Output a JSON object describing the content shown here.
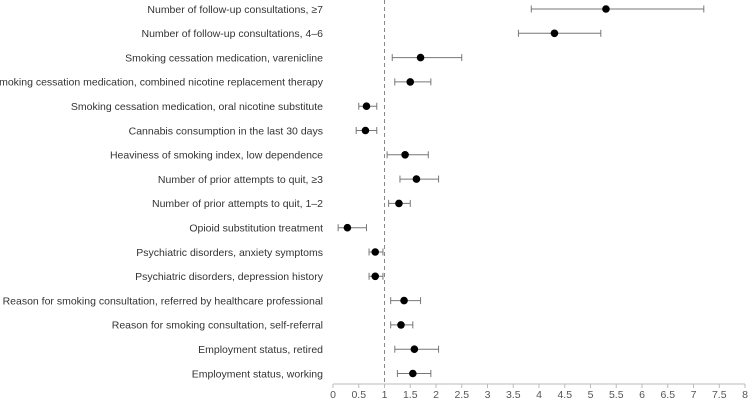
{
  "chart_data": {
    "type": "scatter",
    "subtype": "forest-plot",
    "reference_line": 1,
    "xlim": [
      0,
      8
    ],
    "x_ticks": [
      "0",
      "0.5",
      "1",
      "1.5",
      "2",
      "2.5",
      "3",
      "3.5",
      "4",
      "4.5",
      "5",
      "5.5",
      "6",
      "6.5",
      "7",
      "7.5",
      "8"
    ],
    "grid": false,
    "rows": [
      {
        "label": "Number of follow-up consultations, ≥7",
        "estimate": 5.3,
        "lower": 3.85,
        "upper": 7.2
      },
      {
        "label": "Number of follow-up consultations, 4–6",
        "estimate": 4.3,
        "lower": 3.6,
        "upper": 5.2
      },
      {
        "label": "Smoking cessation medication, varenicline",
        "estimate": 1.7,
        "lower": 1.15,
        "upper": 2.5
      },
      {
        "label": "Smoking cessation medication, combined nicotine replacement therapy",
        "estimate": 1.5,
        "lower": 1.2,
        "upper": 1.9
      },
      {
        "label": "Smoking cessation medication, oral nicotine substitute",
        "estimate": 0.65,
        "lower": 0.5,
        "upper": 0.85
      },
      {
        "label": "Cannabis consumption in the last 30 days",
        "estimate": 0.63,
        "lower": 0.45,
        "upper": 0.85
      },
      {
        "label": "Heaviness of smoking index, low dependence",
        "estimate": 1.4,
        "lower": 1.05,
        "upper": 1.85
      },
      {
        "label": "Number of prior attempts to quit, ≥3",
        "estimate": 1.62,
        "lower": 1.3,
        "upper": 2.05
      },
      {
        "label": "Number of prior attempts to quit, 1–2",
        "estimate": 1.28,
        "lower": 1.08,
        "upper": 1.5
      },
      {
        "label": "Opioid substitution treatment",
        "estimate": 0.28,
        "lower": 0.1,
        "upper": 0.65
      },
      {
        "label": "Psychiatric disorders, anxiety symptoms",
        "estimate": 0.82,
        "lower": 0.7,
        "upper": 0.97
      },
      {
        "label": "Psychiatric disorders, depression history",
        "estimate": 0.82,
        "lower": 0.7,
        "upper": 0.97
      },
      {
        "label": "Reason for smoking consultation, referred by healthcare professional",
        "estimate": 1.38,
        "lower": 1.12,
        "upper": 1.7
      },
      {
        "label": "Reason for smoking consultation, self-referral",
        "estimate": 1.32,
        "lower": 1.12,
        "upper": 1.55
      },
      {
        "label": "Employment status, retired",
        "estimate": 1.58,
        "lower": 1.2,
        "upper": 2.05
      },
      {
        "label": "Employment status, working",
        "estimate": 1.55,
        "lower": 1.25,
        "upper": 1.9
      }
    ]
  },
  "colors": {
    "point": "#000000",
    "whisker": "#777777",
    "axis": "#bbbbbb",
    "reference_line": "#888888"
  }
}
